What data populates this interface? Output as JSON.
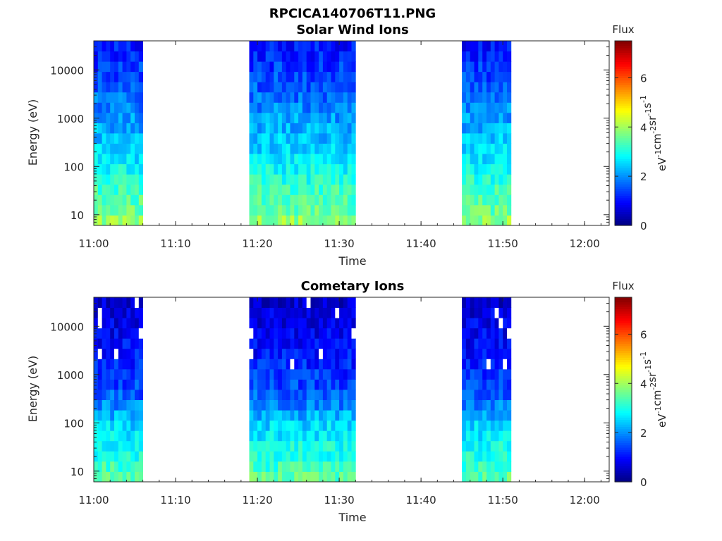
{
  "figure_title": "RPCICA140706T11.PNG",
  "chart_data": [
    {
      "type": "heatmap",
      "title": "Solar Wind Ions",
      "xlabel": "Time",
      "ylabel": "Energy (eV)",
      "x_ticks": [
        "11:00",
        "11:10",
        "11:20",
        "11:30",
        "11:40",
        "11:50",
        "12:00"
      ],
      "y_ticks": [
        "10",
        "100",
        "1000",
        "10000"
      ],
      "y_scale": "log",
      "x_range": [
        "11:00",
        "12:03"
      ],
      "y_range": [
        6,
        40000
      ],
      "data_intervals": [
        [
          "11:00",
          "11:06"
        ],
        [
          "11:19",
          "11:32"
        ],
        [
          "11:45",
          "11:51"
        ]
      ],
      "colorbar": {
        "label": "Flux",
        "unit": "eV-1cm-2sr-1s-1",
        "unit_parts": [
          [
            "eV",
            "-1"
          ],
          [
            "cm",
            "-2"
          ],
          [
            "sr",
            "-1"
          ],
          [
            "s",
            "-1"
          ]
        ],
        "ticks": [
          "0",
          "2",
          "4",
          "6"
        ],
        "range": [
          0,
          7.5
        ],
        "colormap": "jet"
      },
      "flux_profile": {
        "description": "approximate flux level (colorbar units) vs log10 energy",
        "log_energy": [
          0.8,
          1.0,
          1.5,
          2.0,
          2.5,
          3.0,
          3.5,
          4.0,
          4.6
        ],
        "flux": [
          4.1,
          3.6,
          3.3,
          2.8,
          2.4,
          2.1,
          1.7,
          1.4,
          1.0
        ]
      }
    },
    {
      "type": "heatmap",
      "title": "Cometary Ions",
      "xlabel": "Time",
      "ylabel": "Energy (eV)",
      "x_ticks": [
        "11:00",
        "11:10",
        "11:20",
        "11:30",
        "11:40",
        "11:50",
        "12:00"
      ],
      "y_ticks": [
        "10",
        "100",
        "1000",
        "10000"
      ],
      "y_scale": "log",
      "x_range": [
        "11:00",
        "12:03"
      ],
      "y_range": [
        6,
        40000
      ],
      "data_intervals": [
        [
          "11:00",
          "11:06"
        ],
        [
          "11:19",
          "11:32"
        ],
        [
          "11:45",
          "11:51"
        ]
      ],
      "colorbar": {
        "label": "Flux",
        "unit": "eV-1cm-2sr-1s-1",
        "unit_parts": [
          [
            "eV",
            "-1"
          ],
          [
            "cm",
            "-2"
          ],
          [
            "sr",
            "-1"
          ],
          [
            "s",
            "-1"
          ]
        ],
        "ticks": [
          "0",
          "2",
          "4",
          "6"
        ],
        "range": [
          0,
          7.5
        ],
        "colormap": "jet"
      },
      "flux_profile": {
        "description": "approximate flux level (colorbar units) vs log10 energy",
        "log_energy": [
          0.8,
          1.0,
          1.5,
          2.0,
          2.5,
          3.0,
          3.5,
          4.0,
          4.6
        ],
        "flux": [
          3.6,
          3.3,
          2.9,
          2.5,
          1.7,
          1.3,
          1.0,
          0.8,
          0.6
        ]
      }
    }
  ]
}
